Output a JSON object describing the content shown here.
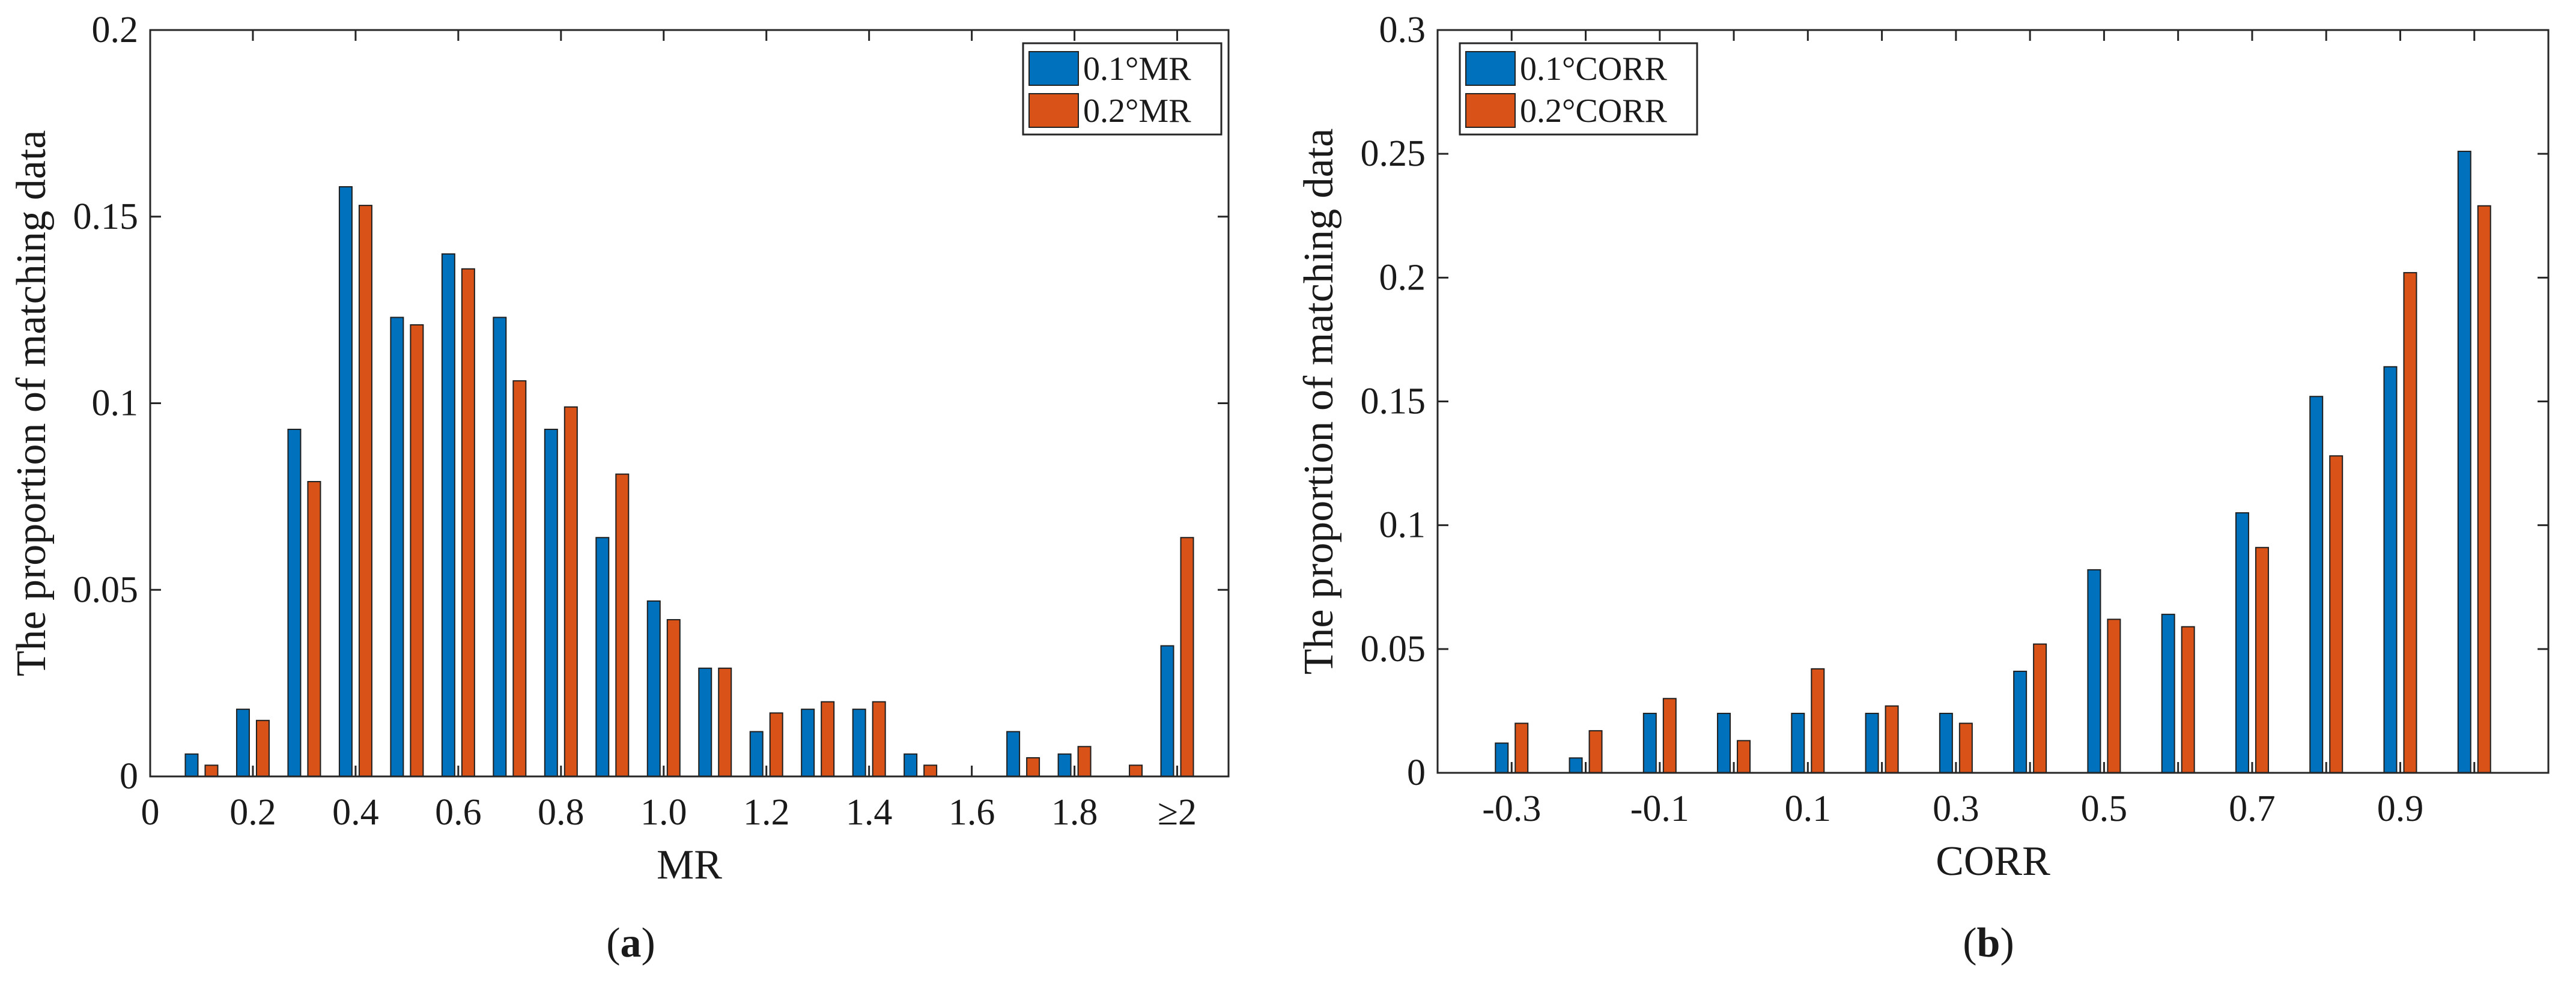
{
  "chart_data": [
    {
      "type": "bar",
      "panel_label": "a",
      "xlabel": "MR",
      "ylabel": "The proportion of matching data",
      "xlim": [
        0,
        2.1
      ],
      "ylim": [
        0,
        0.2
      ],
      "yticks": [
        0,
        0.05,
        0.1,
        0.15,
        0.2
      ],
      "ytick_labels": [
        "0",
        "0.05",
        "0.1",
        "0.15",
        "0.2"
      ],
      "xticks": [
        0,
        0.2,
        0.4,
        0.6,
        0.8,
        1.0,
        1.2,
        1.4,
        1.6,
        1.8,
        2.0
      ],
      "xtick_labels": [
        "0",
        "0.2",
        "0.4",
        "0.6",
        "0.8",
        "1.0",
        "1.2",
        "1.4",
        "1.6",
        "1.8",
        "≥2"
      ],
      "x": [
        0.1,
        0.2,
        0.3,
        0.4,
        0.5,
        0.6,
        0.7,
        0.8,
        0.9,
        1.0,
        1.1,
        1.2,
        1.3,
        1.4,
        1.5,
        1.6,
        1.7,
        1.8,
        1.9,
        2.0
      ],
      "legend_position": "top-right",
      "series": [
        {
          "name": "0.1°MR",
          "color": "#0072BD",
          "values": [
            0.006,
            0.018,
            0.093,
            0.158,
            0.123,
            0.14,
            0.123,
            0.093,
            0.064,
            0.047,
            0.029,
            0.012,
            0.018,
            0.018,
            0.006,
            0.0,
            0.012,
            0.006,
            0.0,
            0.035
          ]
        },
        {
          "name": "0.2°MR",
          "color": "#D95319",
          "values": [
            0.003,
            0.015,
            0.079,
            0.153,
            0.121,
            0.136,
            0.106,
            0.099,
            0.081,
            0.042,
            0.029,
            0.017,
            0.02,
            0.02,
            0.003,
            0.0,
            0.005,
            0.008,
            0.003,
            0.064
          ]
        }
      ]
    },
    {
      "type": "bar",
      "panel_label": "b",
      "xlabel": "CORR",
      "ylabel": "The proportion of matching data",
      "ylim": [
        0,
        0.3
      ],
      "yticks": [
        0,
        0.05,
        0.1,
        0.15,
        0.2,
        0.25,
        0.3
      ],
      "ytick_labels": [
        "0",
        "0.05",
        "0.1",
        "0.15",
        "0.2",
        "0.25",
        "0.3"
      ],
      "categories": [
        "-0.3",
        "-0.2",
        "-0.1",
        "0",
        "0.1",
        "0.2",
        "0.3",
        "0.4",
        "0.5",
        "0.6",
        "0.7",
        "0.8",
        "0.9",
        "1.0"
      ],
      "xtick_labels": [
        "-0.3",
        "",
        "-0.1",
        "",
        "0.1",
        "",
        "0.3",
        "",
        "0.5",
        "",
        "0.7",
        "",
        "0.9",
        ""
      ],
      "legend_position": "top-left",
      "series": [
        {
          "name": "0.1°CORR",
          "color": "#0072BD",
          "values": [
            0.012,
            0.006,
            0.024,
            0.024,
            0.024,
            0.024,
            0.024,
            0.041,
            0.082,
            0.064,
            0.105,
            0.152,
            0.164,
            0.251
          ]
        },
        {
          "name": "0.2°CORR",
          "color": "#D95319",
          "values": [
            0.02,
            0.017,
            0.03,
            0.013,
            0.042,
            0.027,
            0.02,
            0.052,
            0.062,
            0.059,
            0.091,
            0.128,
            0.202,
            0.229
          ]
        }
      ]
    }
  ]
}
